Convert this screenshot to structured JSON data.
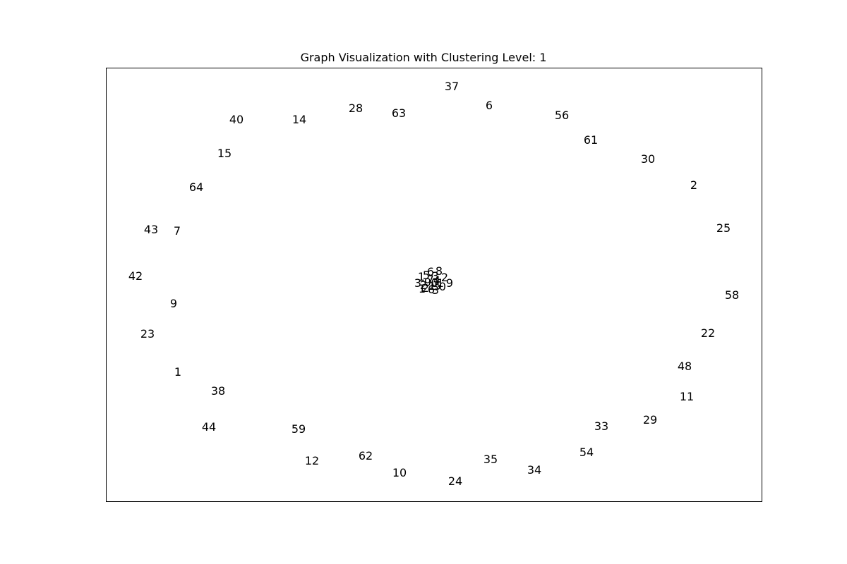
{
  "title": "Graph Visualization with Clustering Level: 1",
  "outer_nodes": [
    "37",
    "6",
    "63",
    "28",
    "14",
    "40",
    "56",
    "61",
    "30",
    "2",
    "15",
    "64",
    "25",
    "43",
    "7",
    "42",
    "58",
    "9",
    "22",
    "23",
    "48",
    "1",
    "11",
    "38",
    "29",
    "33",
    "44",
    "59",
    "54",
    "62",
    "12",
    "35",
    "10",
    "34",
    "24"
  ],
  "cluster_nodes": [
    "6",
    "8",
    "5",
    "1",
    "3",
    "2",
    "7",
    "4",
    "9",
    "0",
    "3",
    "1",
    "9",
    "2",
    "1",
    "5",
    "0",
    "2",
    "1",
    "6",
    "3"
  ]
}
